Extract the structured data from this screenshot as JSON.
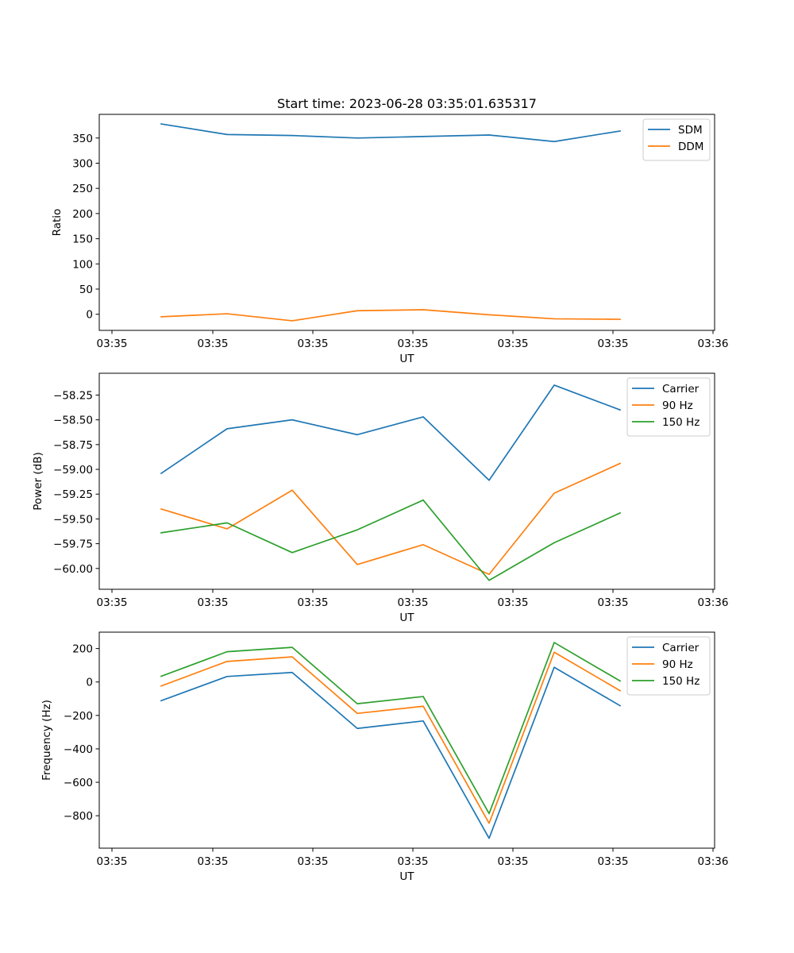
{
  "title": "Start time: 2023-06-28 03:35:01.635317",
  "chart_data": [
    {
      "type": "line",
      "xlabel": "UT",
      "ylabel": "Ratio",
      "x_ticks": [
        "03:35",
        "03:35",
        "03:35",
        "03:35",
        "03:35",
        "03:35",
        "03:36"
      ],
      "y_ticks": [
        "0",
        "50",
        "100",
        "150",
        "200",
        "250",
        "300",
        "350"
      ],
      "ylim": [
        -32,
        397
      ],
      "legend": "top-right",
      "series": [
        {
          "name": "SDM",
          "color": "#1f77b4",
          "values": [
            378,
            357,
            355,
            350,
            353,
            356,
            343,
            364
          ]
        },
        {
          "name": "DDM",
          "color": "#ff7f0e",
          "values": [
            -5,
            1,
            -13,
            7,
            9,
            -1,
            -9,
            -10
          ]
        }
      ]
    },
    {
      "type": "line",
      "xlabel": "UT",
      "ylabel": "Power (dB)",
      "x_ticks": [
        "03:35",
        "03:35",
        "03:35",
        "03:35",
        "03:35",
        "03:35",
        "03:36"
      ],
      "y_ticks": [
        "−60.00",
        "−59.75",
        "−59.50",
        "−59.25",
        "−59.00",
        "−58.75",
        "−58.50",
        "−58.25"
      ],
      "ylim": [
        -60.21,
        -58.03
      ],
      "legend": "top-right",
      "series": [
        {
          "name": "Carrier",
          "color": "#1f77b4",
          "values": [
            -59.04,
            -58.59,
            -58.5,
            -58.65,
            -58.47,
            -59.11,
            -58.15,
            -58.4
          ]
        },
        {
          "name": "90 Hz",
          "color": "#ff7f0e",
          "values": [
            -59.4,
            -59.6,
            -59.21,
            -59.96,
            -59.76,
            -60.06,
            -59.24,
            -58.94
          ]
        },
        {
          "name": "150 Hz",
          "color": "#2ca02c",
          "values": [
            -59.64,
            -59.54,
            -59.84,
            -59.61,
            -59.31,
            -60.12,
            -59.74,
            -59.44
          ]
        }
      ]
    },
    {
      "type": "line",
      "xlabel": "UT",
      "ylabel": "Frequency (Hz)",
      "x_ticks": [
        "03:35",
        "03:35",
        "03:35",
        "03:35",
        "03:35",
        "03:35",
        "03:36"
      ],
      "y_ticks": [
        "−800",
        "−600",
        "−400",
        "−200",
        "0",
        "200"
      ],
      "ylim": [
        -994,
        298
      ],
      "legend": "top-right",
      "series": [
        {
          "name": "Carrier",
          "color": "#1f77b4",
          "values": [
            -112,
            33,
            57,
            -278,
            -233,
            -935,
            88,
            -142
          ]
        },
        {
          "name": "90 Hz",
          "color": "#ff7f0e",
          "values": [
            -24,
            123,
            150,
            -188,
            -145,
            -845,
            178,
            -52
          ]
        },
        {
          "name": "150 Hz",
          "color": "#2ca02c",
          "values": [
            34,
            181,
            207,
            -130,
            -87,
            -787,
            236,
            6
          ]
        }
      ]
    }
  ]
}
